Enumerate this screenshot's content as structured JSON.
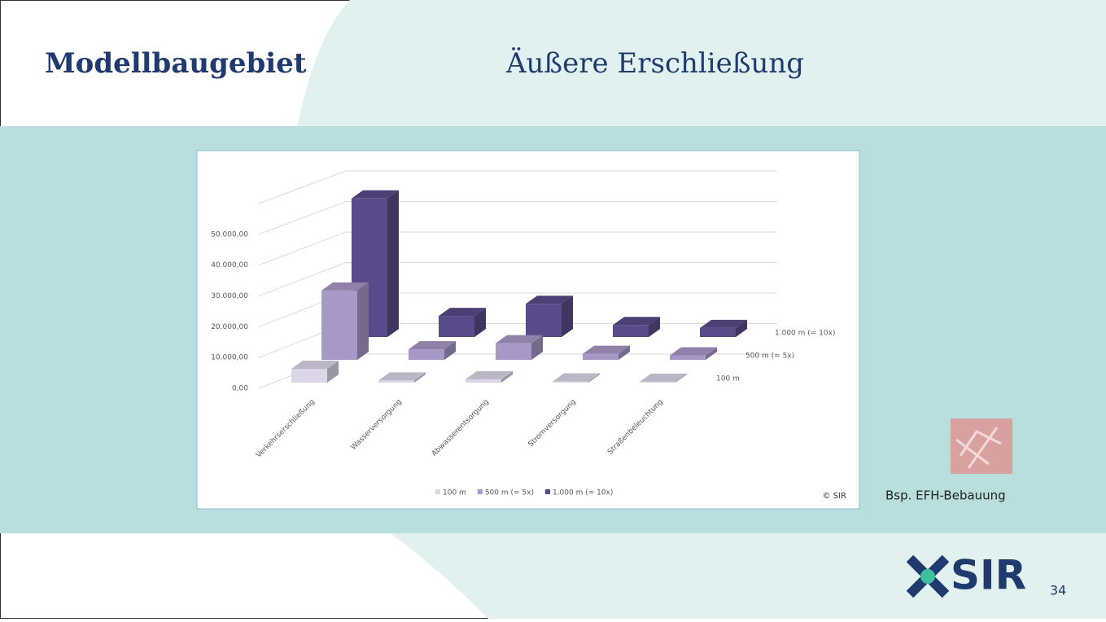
{
  "slide": {
    "title": "Modellbaugebiet",
    "subtitle": "Äußere Erschließung",
    "caption": "Bsp. EFH-Bebauung",
    "copyright": "© SIR",
    "logo": "SIR",
    "page": "34"
  },
  "chart_data": {
    "type": "bar3d",
    "categories": [
      "Verkehrserschließung",
      "Wasserversorgung",
      "Abwasserentsorgung",
      "Stromversorgung",
      "Straßenbeleuchtung"
    ],
    "series": [
      {
        "name": "100 m",
        "color": "#dcd6e8",
        "values": [
          4600,
          700,
          1100,
          400,
          300
        ]
      },
      {
        "name": "500 m (= 5x)",
        "color": "#a898c8",
        "values": [
          23000,
          3500,
          5500,
          2000,
          1500
        ]
      },
      {
        "name": "1.000 m (= 10x)",
        "color": "#5b4a8a",
        "values": [
          46000,
          7000,
          11000,
          4000,
          3000
        ]
      }
    ],
    "ylim": [
      0,
      60000
    ],
    "yticks": [
      {
        "value": 0,
        "label": "0,00"
      },
      {
        "value": 10000,
        "label": "10.000,00"
      },
      {
        "value": 20000,
        "label": "20.000,00"
      },
      {
        "value": 30000,
        "label": "30.000,00"
      },
      {
        "value": 40000,
        "label": "40.000,00"
      },
      {
        "value": 50000,
        "label": "50.000,00"
      }
    ],
    "grid": true,
    "legend": "bottom"
  }
}
